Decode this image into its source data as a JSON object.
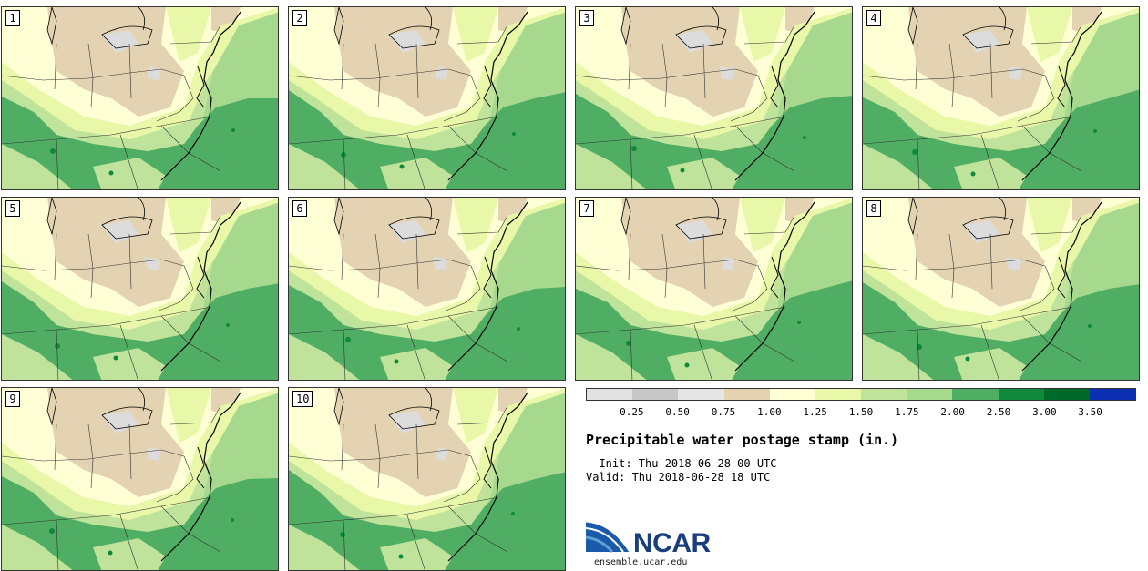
{
  "panels": [
    {
      "label": "1"
    },
    {
      "label": "2"
    },
    {
      "label": "3"
    },
    {
      "label": "4"
    },
    {
      "label": "5"
    },
    {
      "label": "6"
    },
    {
      "label": "7"
    },
    {
      "label": "8"
    },
    {
      "label": "9"
    },
    {
      "label": "10"
    }
  ],
  "legend": {
    "colors": [
      "#e2e2e2",
      "#c8c8c8",
      "#e6e6e6",
      "#e4d3b2",
      "#ffffd6",
      "#e9f7a8",
      "#bfe39a",
      "#a6d98d",
      "#4fae63",
      "#11893c",
      "#006a2b",
      "#0c2fb4"
    ],
    "ticks": [
      "0.25",
      "0.50",
      "0.75",
      "1.00",
      "1.25",
      "1.50",
      "1.75",
      "2.00",
      "2.50",
      "3.00",
      "3.50"
    ]
  },
  "title": "Precipitable water postage stamp (in.)",
  "init": "  Init: Thu 2018-06-28 00 UTC",
  "valid": "Valid: Thu 2018-06-28 18 UTC",
  "logo": {
    "text": "NCAR",
    "url": "ensemble.ucar.edu"
  },
  "map_colors": {
    "ocean": "#a6d98d",
    "wet": "#4fae63",
    "moist": "#bfe39a",
    "light": "#e9f7a8",
    "dry": "#ffffd6",
    "arid": "#e4d3b2",
    "gray": "#dcdcdc"
  }
}
